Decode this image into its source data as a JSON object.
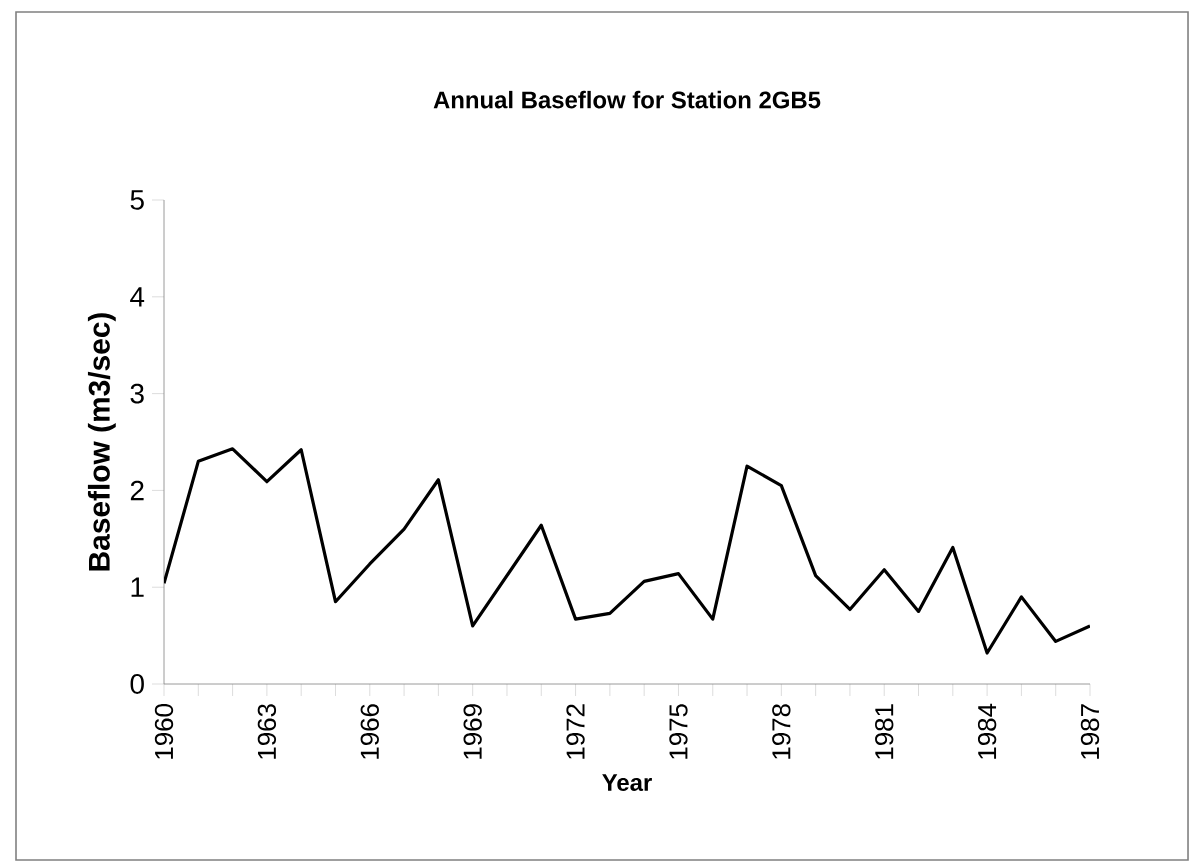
{
  "chart_data": {
    "type": "line",
    "title": "Annual Baseflow for Station 2GB5",
    "xlabel": "Year",
    "ylabel": "Baseflow (m3/sec)",
    "x": [
      1960,
      1961,
      1962,
      1963,
      1964,
      1965,
      1966,
      1967,
      1968,
      1969,
      1970,
      1971,
      1972,
      1973,
      1974,
      1975,
      1976,
      1977,
      1978,
      1979,
      1980,
      1981,
      1982,
      1983,
      1984,
      1985,
      1986,
      1987
    ],
    "series": [
      {
        "color": "#000000",
        "values": [
          1.04,
          2.3,
          2.43,
          2.09,
          2.42,
          0.85,
          1.24,
          1.6,
          2.11,
          0.6,
          1.12,
          1.64,
          0.67,
          0.73,
          1.06,
          1.14,
          0.67,
          2.25,
          2.05,
          1.12,
          0.77,
          1.18,
          0.75,
          1.41,
          0.32,
          0.9,
          0.44,
          0.6
        ]
      }
    ],
    "xlim": [
      1960,
      1987
    ],
    "xticks": [
      1960,
      1963,
      1966,
      1969,
      1972,
      1975,
      1978,
      1981,
      1984,
      1987
    ],
    "ylim": [
      0,
      5
    ],
    "yticks": [
      0,
      1,
      2,
      3,
      4,
      5
    ],
    "grid": false,
    "marker": "none",
    "line_style": "solid"
  }
}
